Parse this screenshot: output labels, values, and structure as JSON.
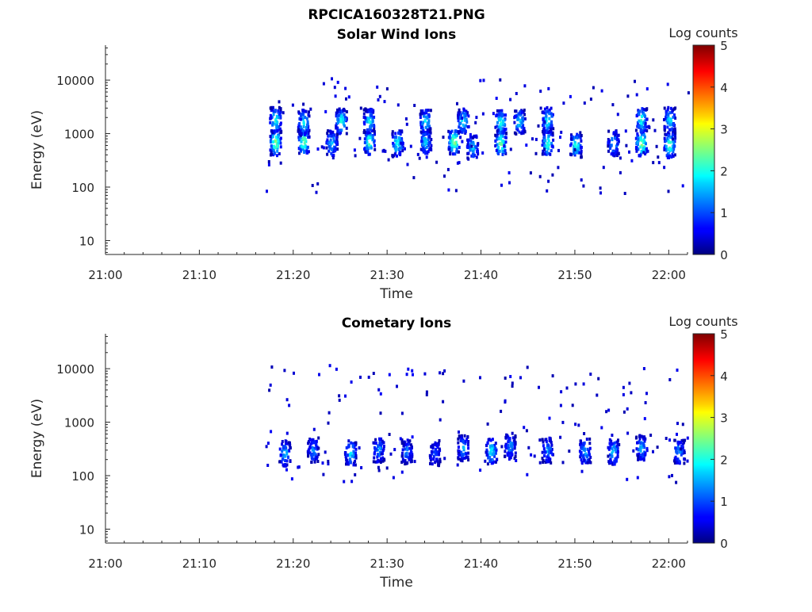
{
  "figure_title": "RPCICA160328T21.PNG",
  "chart_data": [
    {
      "type": "heatmap",
      "title": "Solar Wind Ions",
      "xlabel": "Time",
      "ylabel": "Energy (eV)",
      "x_scale": "time",
      "y_scale": "log",
      "x_range": [
        "21:00",
        "22:02"
      ],
      "y_range": [
        5.5,
        45000
      ],
      "x_tick_labels": [
        "21:00",
        "21:10",
        "21:20",
        "21:30",
        "21:40",
        "21:50",
        "22:00"
      ],
      "y_tick_labels": [
        "10",
        "100",
        "1000",
        "10000"
      ],
      "colorbar": {
        "label": "Log counts",
        "range": [
          0,
          5
        ],
        "tick_labels": [
          "0",
          "1",
          "2",
          "3",
          "4",
          "5"
        ],
        "colormap": "jet"
      },
      "data_time_range": [
        "21:17",
        "22:02"
      ],
      "bursts": [
        {
          "time": "21:18",
          "energy_eV": 720,
          "log_counts": 2.8
        },
        {
          "time": "21:18",
          "energy_eV": 1900,
          "log_counts": 2.2
        },
        {
          "time": "21:21",
          "energy_eV": 750,
          "log_counts": 2.7
        },
        {
          "time": "21:21",
          "energy_eV": 1700,
          "log_counts": 2.0
        },
        {
          "time": "21:24",
          "energy_eV": 700,
          "log_counts": 1.8
        },
        {
          "time": "21:25",
          "energy_eV": 1800,
          "log_counts": 2.3
        },
        {
          "time": "21:28",
          "energy_eV": 750,
          "log_counts": 2.5
        },
        {
          "time": "21:28",
          "energy_eV": 1800,
          "log_counts": 2.0
        },
        {
          "time": "21:31",
          "energy_eV": 700,
          "log_counts": 2.2
        },
        {
          "time": "21:34",
          "energy_eV": 1700,
          "log_counts": 2.0
        },
        {
          "time": "21:34",
          "energy_eV": 750,
          "log_counts": 1.9
        },
        {
          "time": "21:37",
          "energy_eV": 750,
          "log_counts": 2.9
        },
        {
          "time": "21:38",
          "energy_eV": 1800,
          "log_counts": 2.1
        },
        {
          "time": "21:39",
          "energy_eV": 600,
          "log_counts": 1.8
        },
        {
          "time": "21:42",
          "energy_eV": 700,
          "log_counts": 2.8
        },
        {
          "time": "21:42",
          "energy_eV": 1700,
          "log_counts": 2.2
        },
        {
          "time": "21:44",
          "energy_eV": 1800,
          "log_counts": 1.9
        },
        {
          "time": "21:47",
          "energy_eV": 700,
          "log_counts": 2.4
        },
        {
          "time": "21:47",
          "energy_eV": 1900,
          "log_counts": 2.1
        },
        {
          "time": "21:50",
          "energy_eV": 650,
          "log_counts": 2.3
        },
        {
          "time": "21:54",
          "energy_eV": 700,
          "log_counts": 1.8
        },
        {
          "time": "21:57",
          "energy_eV": 700,
          "log_counts": 2.9
        },
        {
          "time": "21:57",
          "energy_eV": 1900,
          "log_counts": 2.2
        },
        {
          "time": "22:00",
          "energy_eV": 650,
          "log_counts": 2.6
        },
        {
          "time": "22:00",
          "energy_eV": 1900,
          "log_counts": 2.1
        }
      ]
    },
    {
      "type": "heatmap",
      "title": "Cometary Ions",
      "xlabel": "Time",
      "ylabel": "Energy (eV)",
      "x_scale": "time",
      "y_scale": "log",
      "x_range": [
        "21:00",
        "22:02"
      ],
      "y_range": [
        5.5,
        45000
      ],
      "x_tick_labels": [
        "21:00",
        "21:10",
        "21:20",
        "21:30",
        "21:40",
        "21:50",
        "22:00"
      ],
      "y_tick_labels": [
        "10",
        "100",
        "1000",
        "10000"
      ],
      "colorbar": {
        "label": "Log counts",
        "range": [
          0,
          5
        ],
        "tick_labels": [
          "0",
          "1",
          "2",
          "3",
          "4",
          "5"
        ],
        "colormap": "jet"
      },
      "data_time_range": [
        "21:17",
        "22:02"
      ],
      "bursts": [
        {
          "time": "21:19",
          "energy_eV": 280,
          "log_counts": 1.8
        },
        {
          "time": "21:22",
          "energy_eV": 320,
          "log_counts": 1.4
        },
        {
          "time": "21:26",
          "energy_eV": 280,
          "log_counts": 1.9
        },
        {
          "time": "21:29",
          "energy_eV": 320,
          "log_counts": 1.6
        },
        {
          "time": "21:32",
          "energy_eV": 300,
          "log_counts": 1.3
        },
        {
          "time": "21:35",
          "energy_eV": 280,
          "log_counts": 1.2
        },
        {
          "time": "21:38",
          "energy_eV": 350,
          "log_counts": 1.6
        },
        {
          "time": "21:41",
          "energy_eV": 300,
          "log_counts": 2.0
        },
        {
          "time": "21:43",
          "energy_eV": 380,
          "log_counts": 1.4
        },
        {
          "time": "21:47",
          "energy_eV": 320,
          "log_counts": 1.5
        },
        {
          "time": "21:51",
          "energy_eV": 300,
          "log_counts": 1.7
        },
        {
          "time": "21:54",
          "energy_eV": 300,
          "log_counts": 1.8
        },
        {
          "time": "21:57",
          "energy_eV": 350,
          "log_counts": 1.7
        },
        {
          "time": "22:01",
          "energy_eV": 300,
          "log_counts": 1.6
        }
      ]
    }
  ]
}
